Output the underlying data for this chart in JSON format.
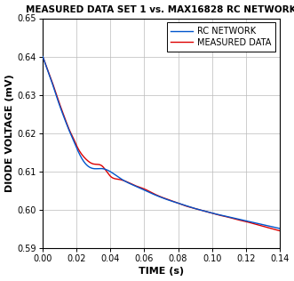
{
  "title": "MEASURED DATA SET 1 vs. MAX16828 RC NETWORK",
  "xlabel": "TIME (s)",
  "ylabel": "DIODE VOLTAGE (mV)",
  "xlim": [
    0,
    0.14
  ],
  "ylim": [
    0.59,
    0.65
  ],
  "xticks": [
    0.0,
    0.02,
    0.04,
    0.06,
    0.08,
    0.1,
    0.12,
    0.14
  ],
  "yticks": [
    0.59,
    0.6,
    0.61,
    0.62,
    0.63,
    0.64,
    0.65
  ],
  "rc_color": "#0055CC",
  "measured_color": "#DD0000",
  "background_color": "#FFFFFF",
  "grid_color": "#BBBBBB",
  "legend_labels": [
    "RC NETWORK",
    "MEASURED DATA"
  ],
  "rc_x": [
    0.0,
    0.002,
    0.004,
    0.006,
    0.008,
    0.01,
    0.012,
    0.014,
    0.016,
    0.018,
    0.02,
    0.025,
    0.03,
    0.035,
    0.04,
    0.045,
    0.05,
    0.055,
    0.06,
    0.065,
    0.07,
    0.075,
    0.08,
    0.085,
    0.09,
    0.095,
    0.1,
    0.105,
    0.11,
    0.115,
    0.12,
    0.125,
    0.13,
    0.135,
    0.14
  ],
  "rc_y": [
    0.64,
    0.6375,
    0.635,
    0.6325,
    0.6298,
    0.6272,
    0.6248,
    0.6225,
    0.6203,
    0.6183,
    0.6162,
    0.6122,
    0.6108,
    0.6108,
    0.61,
    0.6085,
    0.6072,
    0.6062,
    0.6052,
    0.6042,
    0.6033,
    0.6025,
    0.6018,
    0.6011,
    0.6004,
    0.5998,
    0.5992,
    0.5987,
    0.5982,
    0.5977,
    0.5972,
    0.5967,
    0.5962,
    0.5957,
    0.5952
  ],
  "meas_x": [
    0.0,
    0.002,
    0.004,
    0.006,
    0.008,
    0.01,
    0.012,
    0.014,
    0.016,
    0.018,
    0.02,
    0.025,
    0.03,
    0.035,
    0.04,
    0.045,
    0.05,
    0.055,
    0.06,
    0.065,
    0.07,
    0.075,
    0.08,
    0.085,
    0.09,
    0.095,
    0.1,
    0.105,
    0.11,
    0.115,
    0.12,
    0.125,
    0.13,
    0.135,
    0.14
  ],
  "meas_y": [
    0.64,
    0.6376,
    0.6352,
    0.6328,
    0.6302,
    0.6276,
    0.6252,
    0.6228,
    0.6206,
    0.6188,
    0.6168,
    0.6135,
    0.612,
    0.6115,
    0.6088,
    0.608,
    0.6073,
    0.6063,
    0.6055,
    0.6044,
    0.6034,
    0.6026,
    0.6018,
    0.601,
    0.6004,
    0.5998,
    0.5992,
    0.5986,
    0.5981,
    0.5975,
    0.597,
    0.5964,
    0.5958,
    0.5952,
    0.5946
  ],
  "title_fontsize": 7.5,
  "label_fontsize": 8,
  "tick_fontsize": 7,
  "legend_fontsize": 7,
  "linewidth": 1.0
}
